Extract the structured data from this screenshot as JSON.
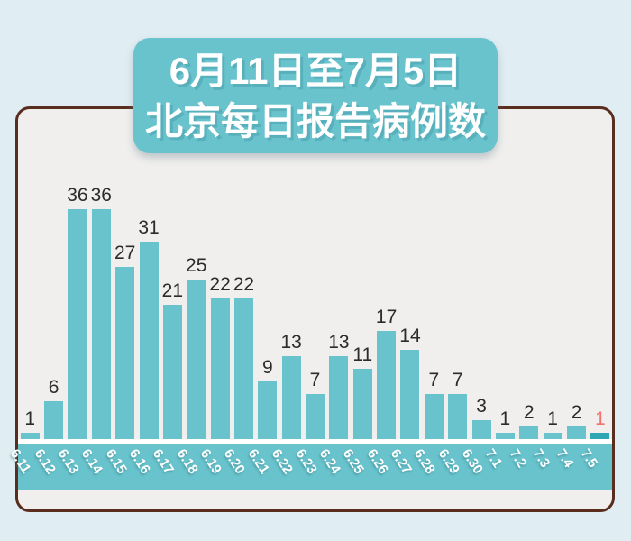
{
  "title": {
    "line1": "6月11日至7月5日",
    "line2": "北京每日报告病例数"
  },
  "chart_data": {
    "type": "bar",
    "title": "6月11日至7月5日 北京每日报告病例数",
    "categories": [
      "6.11",
      "6.12",
      "6.13",
      "6.14",
      "6.15",
      "6.16",
      "6.17",
      "6.18",
      "6.19",
      "6.20",
      "6.21",
      "6.22",
      "6.23",
      "6.24",
      "6.25",
      "6.26",
      "6.27",
      "6.28",
      "6.29",
      "6.30",
      "7.1",
      "7.2",
      "7.3",
      "7.4",
      "7.5"
    ],
    "values": [
      1,
      6,
      36,
      36,
      27,
      31,
      21,
      25,
      22,
      22,
      9,
      13,
      7,
      13,
      11,
      17,
      14,
      7,
      7,
      3,
      1,
      2,
      1,
      2,
      1
    ],
    "xlabel": "",
    "ylabel": "",
    "ylim": [
      0,
      36
    ],
    "grid": false,
    "legend": false,
    "highlight_index": 24,
    "colors": {
      "bar": "#68c3cd",
      "highlight_bar": "#2fa6b4",
      "value_label": "#2b2b2b",
      "highlight_value_label": "#f3716c",
      "axis_band": "#68c3cd",
      "title_box": "#68c3cd",
      "card_background": "#f0efee",
      "card_border": "#5a2e1f",
      "page_background": "#e0edf3"
    }
  }
}
